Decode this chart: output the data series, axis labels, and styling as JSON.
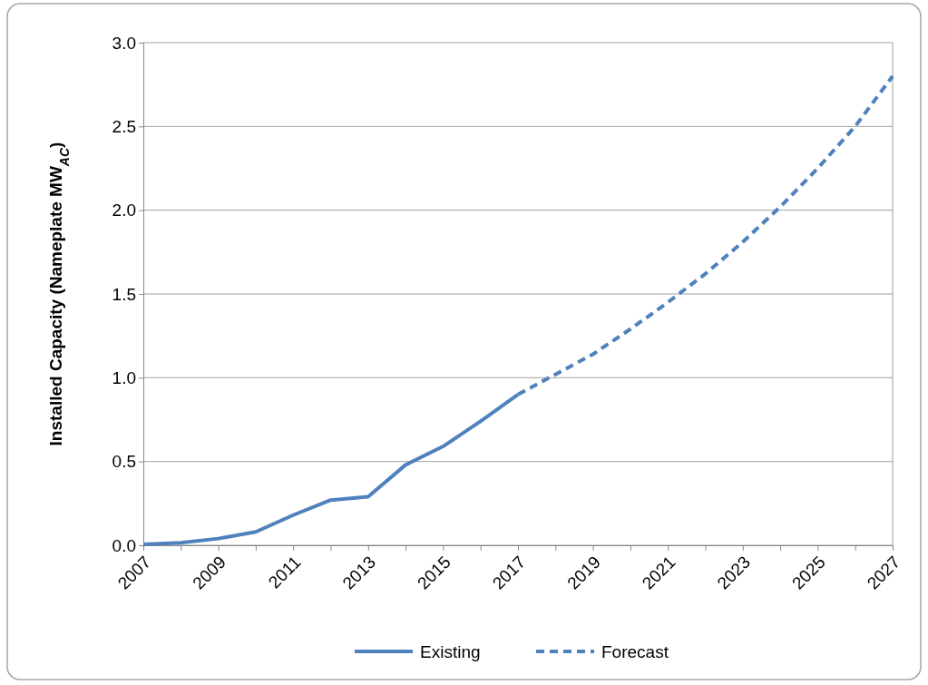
{
  "chart_data": {
    "type": "line",
    "ylabel": "Installed Capacity (Nameplate MW$_{AC}$)",
    "xlim": [
      2007,
      2027
    ],
    "xticks": [
      2007,
      {
        "value": 2008,
        "label": null
      },
      2009,
      {
        "value": 2010,
        "label": null
      },
      2011,
      {
        "value": 2012,
        "label": null
      },
      2013,
      {
        "value": 2014,
        "label": null
      },
      2015,
      {
        "value": 2016,
        "label": null
      },
      2017,
      {
        "value": 2018,
        "label": null
      },
      2019,
      {
        "value": 2020,
        "label": null
      },
      2021,
      {
        "value": 2022,
        "label": null
      },
      2023,
      {
        "value": 2024,
        "label": null
      },
      2025,
      {
        "value": 2026,
        "label": null
      },
      2027
    ],
    "ylim": [
      0,
      3
    ],
    "yticks": [
      {
        "value": 0,
        "label": "0.0"
      },
      {
        "value": 0.5,
        "label": "0.5"
      },
      {
        "value": 1,
        "label": "1.0"
      },
      {
        "value": 1.5,
        "label": "1.5"
      },
      {
        "value": 2,
        "label": "2.0"
      },
      {
        "value": 2.5,
        "label": "2.5"
      },
      {
        "value": 3,
        "label": "3.0"
      }
    ],
    "grid": "y",
    "legend": "bottom",
    "marker": "none",
    "series": [
      {
        "name": "Existing",
        "color": "#4f81bd",
        "line_style": "solid",
        "x": [
          2007,
          2008,
          2009,
          2010,
          2011,
          2012,
          2013,
          2014,
          2015,
          2016,
          2017
        ],
        "values": [
          0.005,
          0.015,
          0.04,
          0.08,
          0.18,
          0.27,
          0.29,
          0.48,
          0.59,
          0.74,
          0.9
        ]
      },
      {
        "name": "Forecast",
        "color": "#4f81bd",
        "line_style": "dashed",
        "x": [
          2017,
          2018,
          2019,
          2020,
          2021,
          2022,
          2023,
          2024,
          2025,
          2026,
          2027
        ],
        "values": [
          0.9,
          1.02,
          1.14,
          1.29,
          1.45,
          1.62,
          1.81,
          2.02,
          2.25,
          2.5,
          2.8
        ]
      }
    ]
  }
}
